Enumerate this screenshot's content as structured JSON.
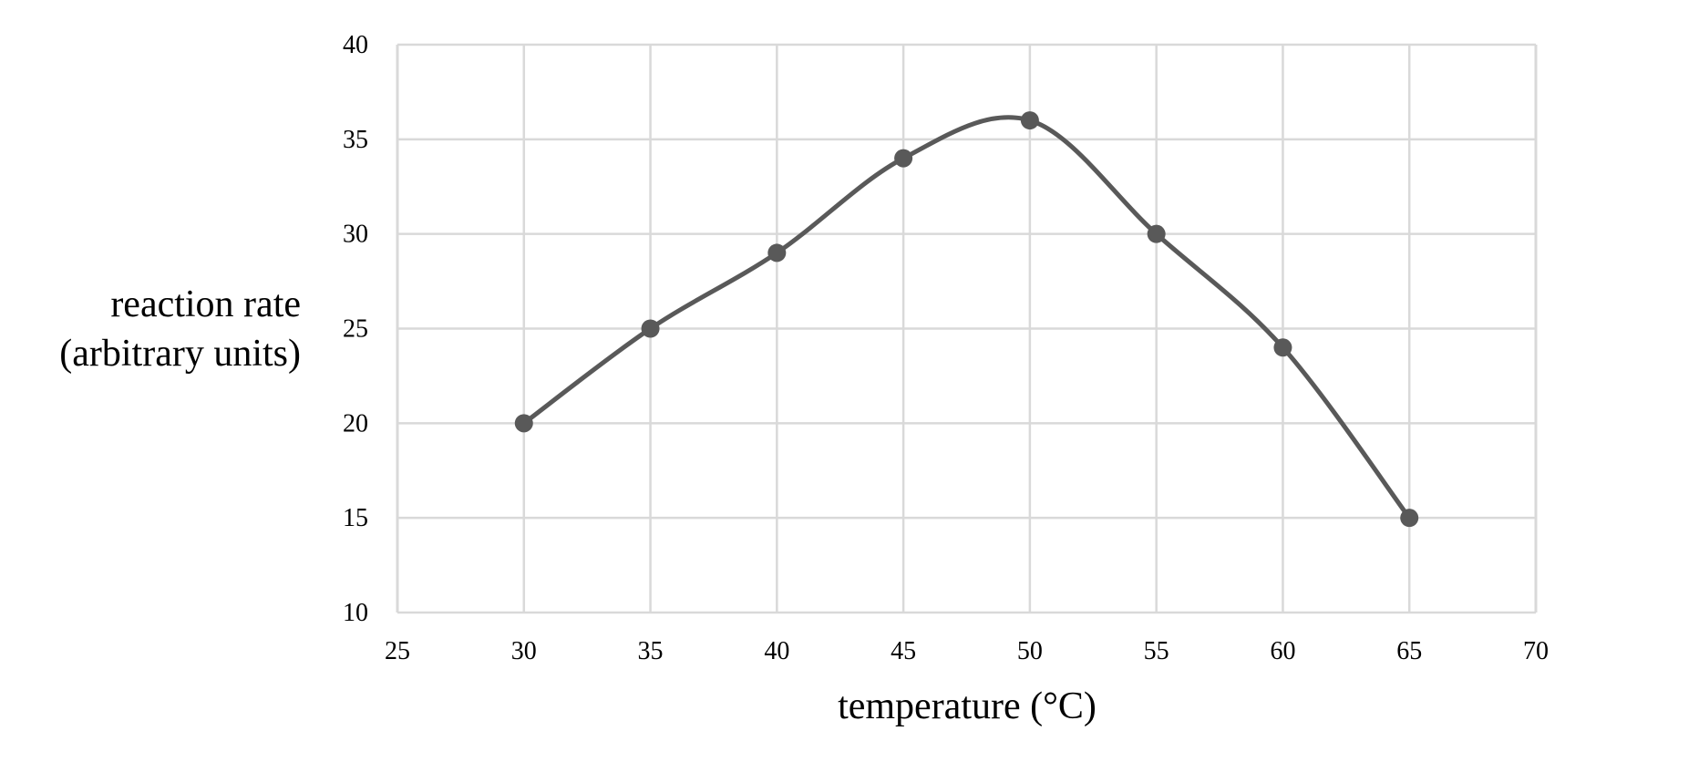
{
  "header_fragment": "graph",
  "chart_data": {
    "type": "line",
    "title": "",
    "xlabel": "temperature (°C)",
    "ylabel_lines": [
      "reaction rate",
      "(arbitrary units)"
    ],
    "xlim": [
      25,
      70
    ],
    "ylim": [
      10,
      40
    ],
    "xticks": [
      25,
      30,
      35,
      40,
      45,
      50,
      55,
      60,
      65,
      70
    ],
    "yticks": [
      10,
      15,
      20,
      25,
      30,
      35,
      40
    ],
    "grid": true,
    "smooth": true,
    "series": [
      {
        "name": "reaction rate",
        "x": [
          30,
          35,
          40,
          45,
          50,
          55,
          60,
          65
        ],
        "y": [
          20,
          25,
          29,
          34,
          36,
          30,
          24,
          15
        ],
        "color": "#595959"
      }
    ],
    "grid_color": "#d9d9d9"
  }
}
